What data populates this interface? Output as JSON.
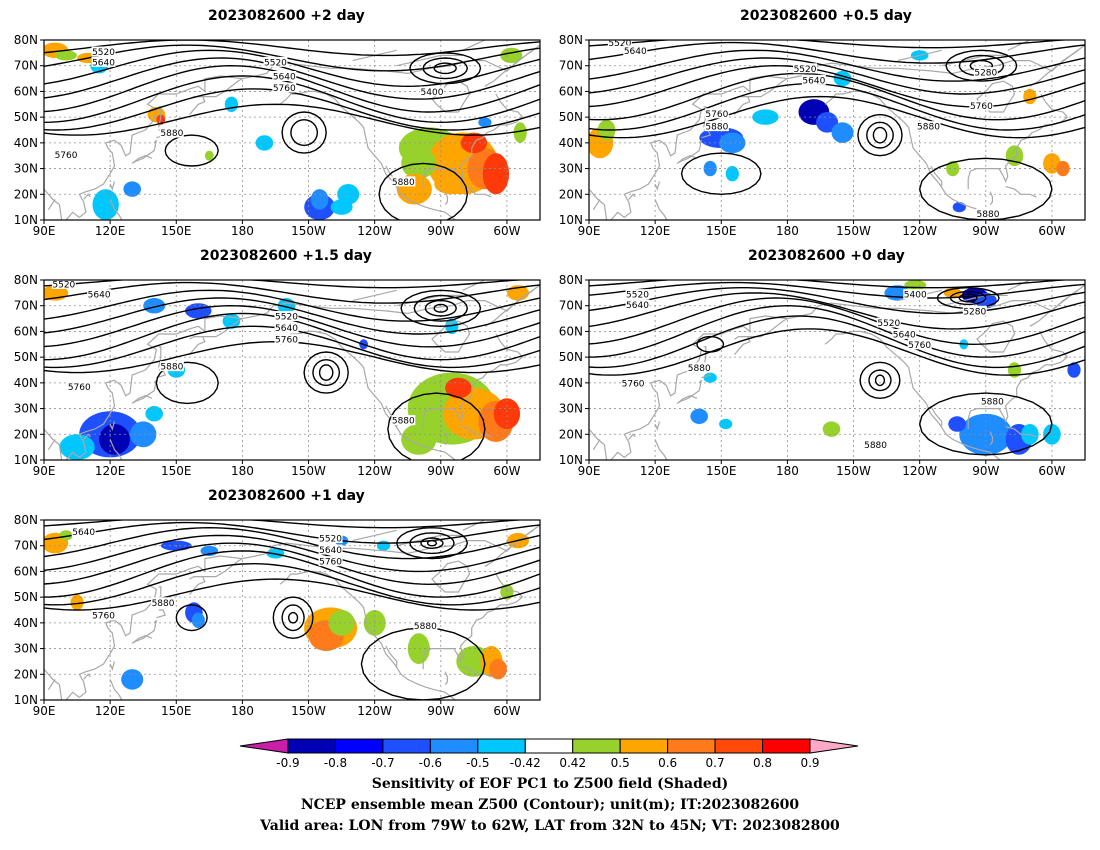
{
  "panels": [
    {
      "id": "p1",
      "title": "2023082600 +2 day",
      "contours": [
        {
          "v": "5520",
          "lat": 75.5,
          "lon": 117
        },
        {
          "v": "5640",
          "lat": 71.5,
          "lon": 117
        },
        {
          "v": "5520",
          "lat": 71.5,
          "lon": 195
        },
        {
          "v": "5640",
          "lat": 66,
          "lon": 199
        },
        {
          "v": "5760",
          "lat": 61.5,
          "lon": 199
        },
        {
          "v": "5400",
          "lat": 60,
          "lon": 266
        },
        {
          "v": "5880",
          "lat": 44,
          "lon": 148
        },
        {
          "v": "5760",
          "lat": 35.5,
          "lon": 100
        },
        {
          "v": "5880",
          "lat": 25,
          "lon": 253
        }
      ]
    },
    {
      "id": "p2",
      "title": "2023082600 +0.5 day",
      "contours": [
        {
          "v": "5520",
          "lat": 79,
          "lon": 104
        },
        {
          "v": "5640",
          "lat": 76,
          "lon": 111
        },
        {
          "v": "5520",
          "lat": 69,
          "lon": 188
        },
        {
          "v": "5640",
          "lat": 64.5,
          "lon": 192
        },
        {
          "v": "5280",
          "lat": 67.5,
          "lon": 270
        },
        {
          "v": "5760",
          "lat": 54.5,
          "lon": 268
        },
        {
          "v": "5760",
          "lat": 51.5,
          "lon": 148
        },
        {
          "v": "5880",
          "lat": 46.5,
          "lon": 148
        },
        {
          "v": "5880",
          "lat": 46.5,
          "lon": 244
        },
        {
          "v": "5880",
          "lat": 12.5,
          "lon": 271
        }
      ]
    },
    {
      "id": "p3",
      "title": "2023082600 +1.5 day",
      "contours": [
        {
          "v": "5520",
          "lat": 78.5,
          "lon": 99
        },
        {
          "v": "5640",
          "lat": 74.5,
          "lon": 115
        },
        {
          "v": "5520",
          "lat": 66,
          "lon": 200
        },
        {
          "v": "5640",
          "lat": 61.5,
          "lon": 200
        },
        {
          "v": "5760",
          "lat": 57,
          "lon": 200
        },
        {
          "v": "5880",
          "lat": 46.5,
          "lon": 148
        },
        {
          "v": "5760",
          "lat": 38.5,
          "lon": 106
        },
        {
          "v": "5880",
          "lat": 25.5,
          "lon": 253
        }
      ]
    },
    {
      "id": "p4",
      "title": "2023082600 +0 day",
      "contours": [
        {
          "v": "5520",
          "lat": 74.5,
          "lon": 112
        },
        {
          "v": "5640",
          "lat": 70.5,
          "lon": 112
        },
        {
          "v": "5400",
          "lat": 74.5,
          "lon": 238
        },
        {
          "v": "5280",
          "lat": 68,
          "lon": 265
        },
        {
          "v": "5520",
          "lat": 63.5,
          "lon": 226
        },
        {
          "v": "5640",
          "lat": 59,
          "lon": 233
        },
        {
          "v": "5760",
          "lat": 55,
          "lon": 240
        },
        {
          "v": "5880",
          "lat": 46,
          "lon": 140
        },
        {
          "v": "5760",
          "lat": 40,
          "lon": 110
        },
        {
          "v": "5880",
          "lat": 33,
          "lon": 273
        },
        {
          "v": "5880",
          "lat": 16,
          "lon": 220
        }
      ]
    },
    {
      "id": "p5",
      "title": "2023082600 +1 day",
      "contours": [
        {
          "v": "5640",
          "lat": 75.5,
          "lon": 108
        },
        {
          "v": "5520",
          "lat": 73,
          "lon": 220
        },
        {
          "v": "5640",
          "lat": 68.5,
          "lon": 220
        },
        {
          "v": "5760",
          "lat": 64,
          "lon": 220
        },
        {
          "v": "5880",
          "lat": 48,
          "lon": 144
        },
        {
          "v": "5760",
          "lat": 43,
          "lon": 117
        },
        {
          "v": "5880",
          "lat": 39,
          "lon": 263
        }
      ]
    }
  ],
  "axes": {
    "lat_labels": [
      "80N",
      "70N",
      "60N",
      "50N",
      "40N",
      "30N",
      "20N",
      "10N"
    ],
    "lon_labels": [
      "90E",
      "120E",
      "150E",
      "180",
      "150W",
      "120W",
      "90W",
      "60W"
    ]
  },
  "colorbar": {
    "ticks": [
      "-0.9",
      "-0.8",
      "-0.7",
      "-0.6",
      "-0.5",
      "-0.42",
      "0.42",
      "0.5",
      "0.6",
      "0.7",
      "0.8",
      "0.9"
    ],
    "colors": [
      "#0000b4",
      "#0000ff",
      "#1e50ff",
      "#1f8cff",
      "#00c8ff",
      "#ffffff",
      "#96d12c",
      "#ffa500",
      "#ff7a1a",
      "#ff4a0a",
      "#ff0000"
    ],
    "low_arrow_color": "#c81ea8",
    "high_arrow_color": "#ffa8c8"
  },
  "caption": {
    "line1": "Sensitivity of EOF PC1 to Z500 field (Shaded)",
    "line2": "NCEP ensemble mean Z500 (Contour); unit(m); IT:2023082600",
    "line3": "Valid area: LON from 79W to 62W, LAT from 32N to 45N; VT: 2023082800"
  },
  "colors": {
    "contour": "#000000",
    "coast": "#a8a8a8",
    "grid": "#909090",
    "green": "#96d12c",
    "orange": "#ffa500",
    "darkorange": "#ff7a1a",
    "red": "#ff3a0a",
    "cyan": "#00c8ff",
    "lightblue": "#1f8cff",
    "blue": "#1e50ff",
    "navy": "#0000b4"
  }
}
